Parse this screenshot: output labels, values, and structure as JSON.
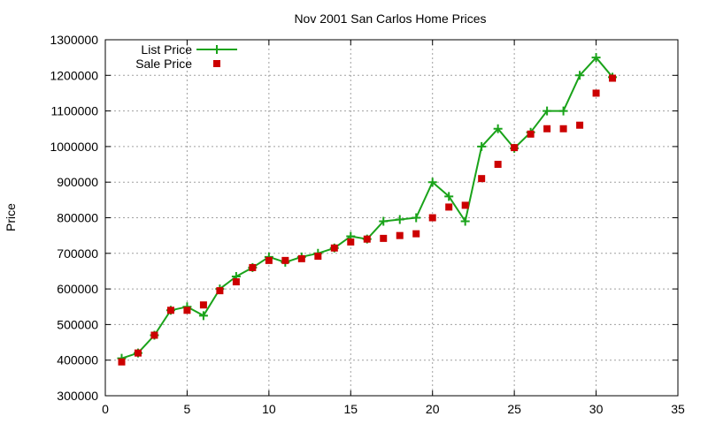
{
  "chart_data": {
    "type": "line",
    "title": "Nov 2001 San Carlos Home Prices",
    "xlabel": "",
    "ylabel": "Price",
    "xlim": [
      0,
      35
    ],
    "ylim": [
      300000,
      1300000
    ],
    "xticks": [
      0,
      5,
      10,
      15,
      20,
      25,
      30,
      35
    ],
    "yticks": [
      300000,
      400000,
      500000,
      600000,
      700000,
      800000,
      900000,
      1000000,
      1100000,
      1200000,
      1300000
    ],
    "grid": true,
    "legend_position": "top-left",
    "series": [
      {
        "name": "List Price",
        "style": "linespoints",
        "marker": "plus",
        "color": "#1aa31a",
        "points": [
          [
            1,
            405000
          ],
          [
            2,
            420000
          ],
          [
            3,
            470000
          ],
          [
            4,
            540000
          ],
          [
            5,
            550000
          ],
          [
            6,
            525000
          ],
          [
            7,
            600000
          ],
          [
            8,
            635000
          ],
          [
            9,
            660000
          ],
          [
            10,
            690000
          ],
          [
            11,
            675000
          ],
          [
            12,
            690000
          ],
          [
            13,
            700000
          ],
          [
            14,
            715000
          ],
          [
            15,
            748000
          ],
          [
            16,
            740000
          ],
          [
            17,
            790000
          ],
          [
            18,
            795000
          ],
          [
            19,
            800000
          ],
          [
            20,
            900000
          ],
          [
            21,
            860000
          ],
          [
            22,
            790000
          ],
          [
            23,
            1000000
          ],
          [
            24,
            1050000
          ],
          [
            25,
            995000
          ],
          [
            26,
            1040000
          ],
          [
            27,
            1100000
          ],
          [
            28,
            1100000
          ],
          [
            29,
            1200000
          ],
          [
            30,
            1250000
          ],
          [
            31,
            1195000
          ]
        ]
      },
      {
        "name": "Sale Price",
        "style": "points",
        "marker": "square",
        "color": "#cc0000",
        "points": [
          [
            1,
            395000
          ],
          [
            2,
            420000
          ],
          [
            3,
            470000
          ],
          [
            4,
            540000
          ],
          [
            5,
            540000
          ],
          [
            6,
            555000
          ],
          [
            7,
            595000
          ],
          [
            8,
            620000
          ],
          [
            9,
            660000
          ],
          [
            10,
            680000
          ],
          [
            11,
            680000
          ],
          [
            12,
            685000
          ],
          [
            13,
            692000
          ],
          [
            14,
            715000
          ],
          [
            15,
            732000
          ],
          [
            16,
            740000
          ],
          [
            17,
            742000
          ],
          [
            18,
            750000
          ],
          [
            19,
            755000
          ],
          [
            20,
            800000
          ],
          [
            21,
            830000
          ],
          [
            22,
            835000
          ],
          [
            23,
            910000
          ],
          [
            24,
            950000
          ],
          [
            25,
            997000
          ],
          [
            26,
            1035000
          ],
          [
            27,
            1050000
          ],
          [
            28,
            1050000
          ],
          [
            29,
            1060000
          ],
          [
            30,
            1150000
          ],
          [
            31,
            1192000
          ]
        ]
      }
    ]
  }
}
